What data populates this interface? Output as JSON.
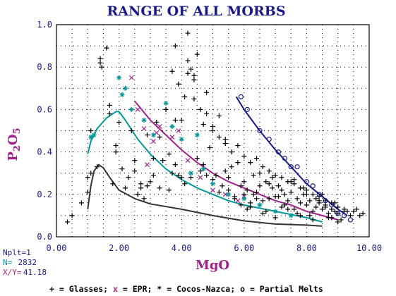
{
  "chart_data": {
    "type": "scatter",
    "title": "RANGE OF ALL MORBS",
    "xlabel": "MgO",
    "ylabel_main": "P",
    "ylabel_sub1": "2",
    "ylabel_mid": "O",
    "ylabel_sub2": "5",
    "xlim": [
      0,
      10
    ],
    "ylim": [
      0,
      1
    ],
    "x_ticks": [
      "0.00",
      "2.00",
      "4.00",
      "6.00",
      "8.00",
      "10.00"
    ],
    "y_ticks": [
      "0.0",
      "0.2",
      "0.4",
      "0.6",
      "0.8",
      "1.0"
    ],
    "grid": "dotted",
    "info": {
      "nplt": "Nplt=1",
      "n_label": "N=",
      "n_value": "2832",
      "xy_label": "X/Y=",
      "xy_value": "41.18"
    },
    "legend": {
      "glasses": "+ = Glasses;",
      "epr_sym": "x",
      "epr": " = EPR;",
      "cocos": "* = Cocos-Nazca;",
      "partial": "o = Partial Melts"
    },
    "colors": {
      "title": "#1a1a8c",
      "axis_label": "#a0208c",
      "glasses": "#000000",
      "epr": "#a0208c",
      "cocos": "#009999",
      "partial": "#1a1a8c",
      "curve_gray": "#333333"
    },
    "series": [
      {
        "name": "Glasses",
        "marker": "+",
        "color": "#000000",
        "x": [
          0.35,
          0.5,
          0.8,
          1.0,
          1.1,
          1.3,
          1.4,
          1.6,
          1.7,
          1.9,
          2.0,
          2.1,
          2.2,
          2.3,
          2.4,
          2.5,
          2.6,
          2.7,
          2.8,
          2.9,
          3.0,
          3.1,
          3.2,
          3.3,
          3.4,
          3.5,
          3.6,
          3.7,
          3.8,
          3.9,
          4.0,
          4.1,
          4.2,
          4.3,
          4.4,
          4.5,
          4.6,
          4.7,
          4.8,
          4.9,
          5.0,
          5.1,
          5.2,
          5.3,
          5.4,
          5.5,
          5.6,
          5.7,
          5.8,
          5.9,
          6.0,
          6.1,
          6.2,
          6.3,
          6.4,
          6.5,
          6.6,
          6.7,
          6.8,
          6.9,
          7.0,
          7.1,
          7.2,
          7.3,
          7.4,
          7.5,
          7.6,
          7.7,
          7.8,
          7.9,
          8.0,
          8.1,
          8.2,
          8.3,
          8.4,
          8.5,
          8.6,
          8.7,
          8.8,
          8.9,
          9.0,
          9.2,
          9.4,
          9.6,
          9.8,
          1.4,
          1.45,
          1.7,
          1.8,
          2.6,
          2.9,
          3.1,
          3.3,
          3.5,
          3.7,
          3.8,
          3.9,
          4.0,
          4.1,
          4.2,
          4.3,
          4.4,
          4.5,
          4.6,
          4.7,
          4.8,
          5.0,
          5.2,
          5.4,
          5.6,
          5.8,
          6.0,
          6.2,
          6.4,
          6.6,
          6.8,
          7.0,
          7.2,
          7.4,
          7.6,
          7.8,
          8.0,
          8.2,
          8.4,
          8.6,
          8.8,
          9.0,
          9.2,
          5.5,
          5.7,
          5.9,
          6.1,
          6.3,
          6.5,
          6.7,
          6.9,
          7.1,
          7.3,
          7.5,
          7.7,
          7.9,
          8.1,
          8.3,
          8.5,
          8.7,
          8.9,
          9.1,
          9.3,
          6.0,
          6.2,
          6.4,
          6.6,
          6.8,
          7.0,
          7.2,
          7.4,
          7.6,
          7.8,
          8.0,
          8.2,
          8.4,
          8.6,
          8.8,
          9.0,
          9.5,
          9.7,
          4.2,
          4.4,
          4.8,
          5.0,
          5.2,
          5.4,
          3.6,
          3.8,
          2.7,
          2.5,
          1.9,
          1.0,
          1.1
        ],
        "y": [
          0.07,
          0.1,
          0.16,
          0.28,
          0.3,
          0.33,
          0.82,
          0.89,
          0.62,
          0.43,
          0.54,
          0.32,
          0.23,
          0.28,
          0.5,
          0.31,
          0.2,
          0.23,
          0.18,
          0.48,
          0.26,
          0.37,
          0.54,
          0.23,
          0.36,
          0.6,
          0.22,
          0.3,
          0.55,
          0.29,
          0.28,
          0.25,
          0.77,
          0.28,
          0.76,
          0.37,
          0.31,
          0.34,
          0.29,
          0.42,
          0.27,
          0.29,
          0.21,
          0.24,
          0.31,
          0.28,
          0.33,
          0.19,
          0.35,
          0.24,
          0.2,
          0.22,
          0.16,
          0.29,
          0.18,
          0.3,
          0.17,
          0.26,
          0.18,
          0.23,
          0.19,
          0.24,
          0.14,
          0.2,
          0.17,
          0.21,
          0.13,
          0.18,
          0.16,
          0.2,
          0.15,
          0.17,
          0.12,
          0.14,
          0.16,
          0.13,
          0.14,
          0.11,
          0.13,
          0.12,
          0.11,
          0.12,
          0.1,
          0.13,
          0.11,
          0.84,
          0.8,
          0.58,
          0.25,
          0.2,
          0.24,
          0.29,
          0.47,
          0.6,
          0.78,
          0.9,
          0.72,
          0.55,
          0.66,
          0.83,
          0.79,
          0.65,
          0.86,
          0.6,
          0.53,
          0.58,
          0.52,
          0.47,
          0.44,
          0.4,
          0.43,
          0.38,
          0.35,
          0.37,
          0.33,
          0.31,
          0.29,
          0.28,
          0.26,
          0.25,
          0.23,
          0.22,
          0.2,
          0.19,
          0.17,
          0.16,
          0.14,
          0.13,
          0.22,
          0.18,
          0.15,
          0.13,
          0.2,
          0.24,
          0.12,
          0.28,
          0.19,
          0.15,
          0.26,
          0.11,
          0.23,
          0.1,
          0.18,
          0.2,
          0.09,
          0.16,
          0.08,
          0.12,
          0.26,
          0.14,
          0.21,
          0.11,
          0.25,
          0.09,
          0.22,
          0.13,
          0.27,
          0.1,
          0.2,
          0.08,
          0.17,
          0.15,
          0.09,
          0.07,
          0.12,
          0.1,
          0.96,
          0.74,
          0.68,
          0.5,
          0.57,
          0.46,
          0.39,
          0.34,
          0.25,
          0.36,
          0.4,
          0.21,
          0.5
        ]
      },
      {
        "name": "EPR",
        "marker": "x",
        "color": "#a0208c",
        "x": [
          2.4,
          2.6,
          2.8,
          3.2,
          3.3,
          3.7,
          3.9,
          4.2,
          4.6,
          5.0,
          5.4,
          5.8,
          6.0,
          2.9,
          3.1
        ],
        "y": [
          0.75,
          0.6,
          0.51,
          0.49,
          0.52,
          0.47,
          0.5,
          0.36,
          0.28,
          0.22,
          0.2,
          0.17,
          0.19,
          0.34,
          0.45
        ]
      },
      {
        "name": "Cocos-Nazca",
        "marker": "*",
        "color": "#009999",
        "x": [
          1.1,
          1.2,
          2.0,
          2.1,
          2.2,
          2.4,
          2.8,
          3.1,
          3.5,
          3.7,
          4.0,
          4.3,
          4.5,
          4.7,
          5.0,
          5.5,
          6.0,
          6.5,
          7.0,
          7.5
        ],
        "y": [
          0.47,
          0.48,
          0.75,
          0.67,
          0.7,
          0.6,
          0.55,
          0.48,
          0.63,
          0.52,
          0.46,
          0.3,
          0.48,
          0.32,
          0.25,
          0.2,
          0.18,
          0.15,
          0.12,
          0.1
        ]
      },
      {
        "name": "Partial Melts",
        "marker": "o",
        "color": "#1a1a8c",
        "x": [
          5.9,
          6.1,
          6.5,
          6.8,
          7.1,
          7.3,
          7.5,
          7.7,
          8.0,
          8.2,
          8.4,
          8.6,
          8.8,
          9.0,
          9.2,
          9.4
        ],
        "y": [
          0.66,
          0.6,
          0.5,
          0.46,
          0.4,
          0.37,
          0.33,
          0.33,
          0.26,
          0.24,
          0.2,
          0.17,
          0.15,
          0.11,
          0.1,
          0.08
        ]
      }
    ],
    "curves": [
      {
        "color": "#333333",
        "x": [
          1.0,
          1.1,
          1.2,
          1.35,
          1.5,
          1.7,
          2.0,
          2.5,
          3.0,
          4.0,
          5.0,
          6.0,
          7.0,
          8.0,
          8.5
        ],
        "y": [
          0.13,
          0.24,
          0.31,
          0.34,
          0.325,
          0.28,
          0.22,
          0.18,
          0.155,
          0.13,
          0.1,
          0.075,
          0.06,
          0.055,
          0.05
        ]
      },
      {
        "color": "#009999",
        "x": [
          1.0,
          1.1,
          1.3,
          1.6,
          1.9,
          2.0,
          2.2,
          2.6,
          3.0,
          3.5,
          4.0,
          4.5,
          5.0,
          5.5,
          6.0,
          7.0,
          8.0,
          8.5
        ],
        "y": [
          0.39,
          0.45,
          0.51,
          0.56,
          0.59,
          0.59,
          0.55,
          0.46,
          0.39,
          0.32,
          0.27,
          0.23,
          0.2,
          0.17,
          0.15,
          0.12,
          0.09,
          0.07
        ]
      },
      {
        "color": "#a0208c",
        "x": [
          2.5,
          3.0,
          3.5,
          4.0,
          4.5,
          5.0,
          5.5,
          6.0,
          6.5,
          7.0,
          7.5,
          8.0,
          8.5,
          9.0
        ],
        "y": [
          0.64,
          0.55,
          0.48,
          0.41,
          0.35,
          0.3,
          0.26,
          0.23,
          0.2,
          0.17,
          0.15,
          0.12,
          0.1,
          0.08
        ]
      },
      {
        "color": "#1a1a8c",
        "x": [
          5.75,
          6.0,
          6.5,
          7.0,
          7.5,
          8.0,
          8.5,
          9.0,
          9.3
        ],
        "y": [
          0.66,
          0.6,
          0.5,
          0.41,
          0.33,
          0.25,
          0.19,
          0.13,
          0.1
        ]
      }
    ]
  }
}
